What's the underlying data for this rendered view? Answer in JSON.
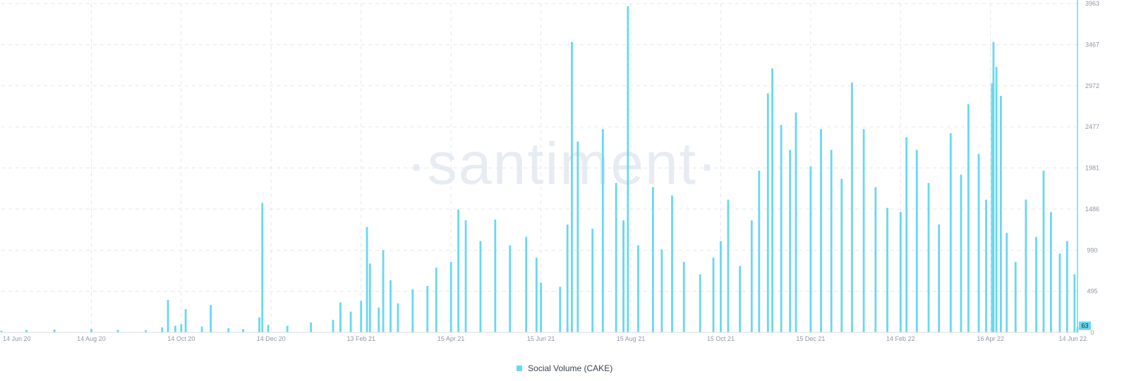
{
  "watermark": "·santiment·",
  "chart_data": {
    "type": "bar",
    "title": "",
    "xlabel": "",
    "ylabel": "",
    "x_range": [
      "2020-06-14",
      "2022-06-14"
    ],
    "ylim": [
      0,
      3963
    ],
    "yticks": [
      0,
      495,
      990,
      1486,
      1981,
      2477,
      2972,
      3467,
      3963
    ],
    "xticks": [
      {
        "date": "2020-06-14",
        "label": "14 Jun 20"
      },
      {
        "date": "2020-08-14",
        "label": "14 Aug 20"
      },
      {
        "date": "2020-10-14",
        "label": "14 Oct 20"
      },
      {
        "date": "2020-12-14",
        "label": "14 Dec 20"
      },
      {
        "date": "2021-02-13",
        "label": "13 Feb 21"
      },
      {
        "date": "2021-04-15",
        "label": "15 Apr 21"
      },
      {
        "date": "2021-06-15",
        "label": "15 Jun 21"
      },
      {
        "date": "2021-08-15",
        "label": "15 Aug 21"
      },
      {
        "date": "2021-10-15",
        "label": "15 Oct 21"
      },
      {
        "date": "2021-12-15",
        "label": "15 Dec 21"
      },
      {
        "date": "2022-02-14",
        "label": "14 Feb 22"
      },
      {
        "date": "2022-04-16",
        "label": "16 Apr 22"
      },
      {
        "date": "2022-06-14",
        "label": "14 Jun 22"
      }
    ],
    "grid": true,
    "legend_position": "bottom-center",
    "series": [
      {
        "name": "Social Volume (CAKE)",
        "color": "#68d8f0",
        "last_value_label": "63",
        "points": [
          [
            "2020-06-14",
            20
          ],
          [
            "2020-07-01",
            30
          ],
          [
            "2020-07-20",
            35
          ],
          [
            "2020-08-14",
            40
          ],
          [
            "2020-09-01",
            30
          ],
          [
            "2020-09-20",
            25
          ],
          [
            "2020-10-01",
            60
          ],
          [
            "2020-10-05",
            390
          ],
          [
            "2020-10-10",
            80
          ],
          [
            "2020-10-14",
            100
          ],
          [
            "2020-10-17",
            280
          ],
          [
            "2020-10-28",
            70
          ],
          [
            "2020-11-03",
            330
          ],
          [
            "2020-11-15",
            50
          ],
          [
            "2020-11-25",
            40
          ],
          [
            "2020-12-06",
            180
          ],
          [
            "2020-12-08",
            1560
          ],
          [
            "2020-12-12",
            90
          ],
          [
            "2020-12-25",
            80
          ],
          [
            "2021-01-10",
            120
          ],
          [
            "2021-01-25",
            150
          ],
          [
            "2021-01-30",
            360
          ],
          [
            "2021-02-06",
            250
          ],
          [
            "2021-02-13",
            380
          ],
          [
            "2021-02-17",
            1270
          ],
          [
            "2021-02-19",
            830
          ],
          [
            "2021-02-25",
            300
          ],
          [
            "2021-02-28",
            990
          ],
          [
            "2021-03-05",
            630
          ],
          [
            "2021-03-10",
            350
          ],
          [
            "2021-03-20",
            520
          ],
          [
            "2021-03-30",
            560
          ],
          [
            "2021-04-05",
            780
          ],
          [
            "2021-04-15",
            850
          ],
          [
            "2021-04-20",
            1480
          ],
          [
            "2021-04-25",
            1350
          ],
          [
            "2021-05-05",
            1100
          ],
          [
            "2021-05-15",
            1360
          ],
          [
            "2021-05-25",
            1050
          ],
          [
            "2021-06-05",
            1150
          ],
          [
            "2021-06-12",
            900
          ],
          [
            "2021-06-15",
            600
          ],
          [
            "2021-06-28",
            550
          ],
          [
            "2021-07-03",
            1300
          ],
          [
            "2021-07-06",
            3500
          ],
          [
            "2021-07-10",
            2300
          ],
          [
            "2021-07-20",
            1250
          ],
          [
            "2021-07-27",
            2450
          ],
          [
            "2021-08-05",
            1800
          ],
          [
            "2021-08-10",
            1350
          ],
          [
            "2021-08-13",
            3930
          ],
          [
            "2021-08-20",
            1050
          ],
          [
            "2021-08-30",
            1750
          ],
          [
            "2021-09-05",
            1000
          ],
          [
            "2021-09-12",
            1650
          ],
          [
            "2021-09-20",
            850
          ],
          [
            "2021-10-01",
            700
          ],
          [
            "2021-10-10",
            900
          ],
          [
            "2021-10-15",
            1100
          ],
          [
            "2021-10-20",
            1600
          ],
          [
            "2021-10-28",
            800
          ],
          [
            "2021-11-05",
            1350
          ],
          [
            "2021-11-10",
            1950
          ],
          [
            "2021-11-16",
            2880
          ],
          [
            "2021-11-19",
            3180
          ],
          [
            "2021-11-25",
            2500
          ],
          [
            "2021-12-01",
            2200
          ],
          [
            "2021-12-05",
            2650
          ],
          [
            "2021-12-15",
            2000
          ],
          [
            "2021-12-22",
            2450
          ],
          [
            "2021-12-29",
            2200
          ],
          [
            "2022-01-05",
            1850
          ],
          [
            "2022-01-12",
            3010
          ],
          [
            "2022-01-20",
            2450
          ],
          [
            "2022-01-28",
            1750
          ],
          [
            "2022-02-05",
            1500
          ],
          [
            "2022-02-14",
            1450
          ],
          [
            "2022-02-18",
            2350
          ],
          [
            "2022-02-25",
            2200
          ],
          [
            "2022-03-05",
            1800
          ],
          [
            "2022-03-12",
            1300
          ],
          [
            "2022-03-20",
            2400
          ],
          [
            "2022-03-27",
            1900
          ],
          [
            "2022-04-01",
            2750
          ],
          [
            "2022-04-08",
            2150
          ],
          [
            "2022-04-13",
            1600
          ],
          [
            "2022-04-17",
            3000
          ],
          [
            "2022-04-18",
            3500
          ],
          [
            "2022-04-20",
            3200
          ],
          [
            "2022-04-23",
            2850
          ],
          [
            "2022-04-27",
            1200
          ],
          [
            "2022-05-03",
            850
          ],
          [
            "2022-05-10",
            1600
          ],
          [
            "2022-05-17",
            1150
          ],
          [
            "2022-05-22",
            1950
          ],
          [
            "2022-05-27",
            1450
          ],
          [
            "2022-06-02",
            950
          ],
          [
            "2022-06-07",
            1100
          ],
          [
            "2022-06-12",
            700
          ],
          [
            "2022-06-14",
            63
          ]
        ]
      }
    ]
  }
}
